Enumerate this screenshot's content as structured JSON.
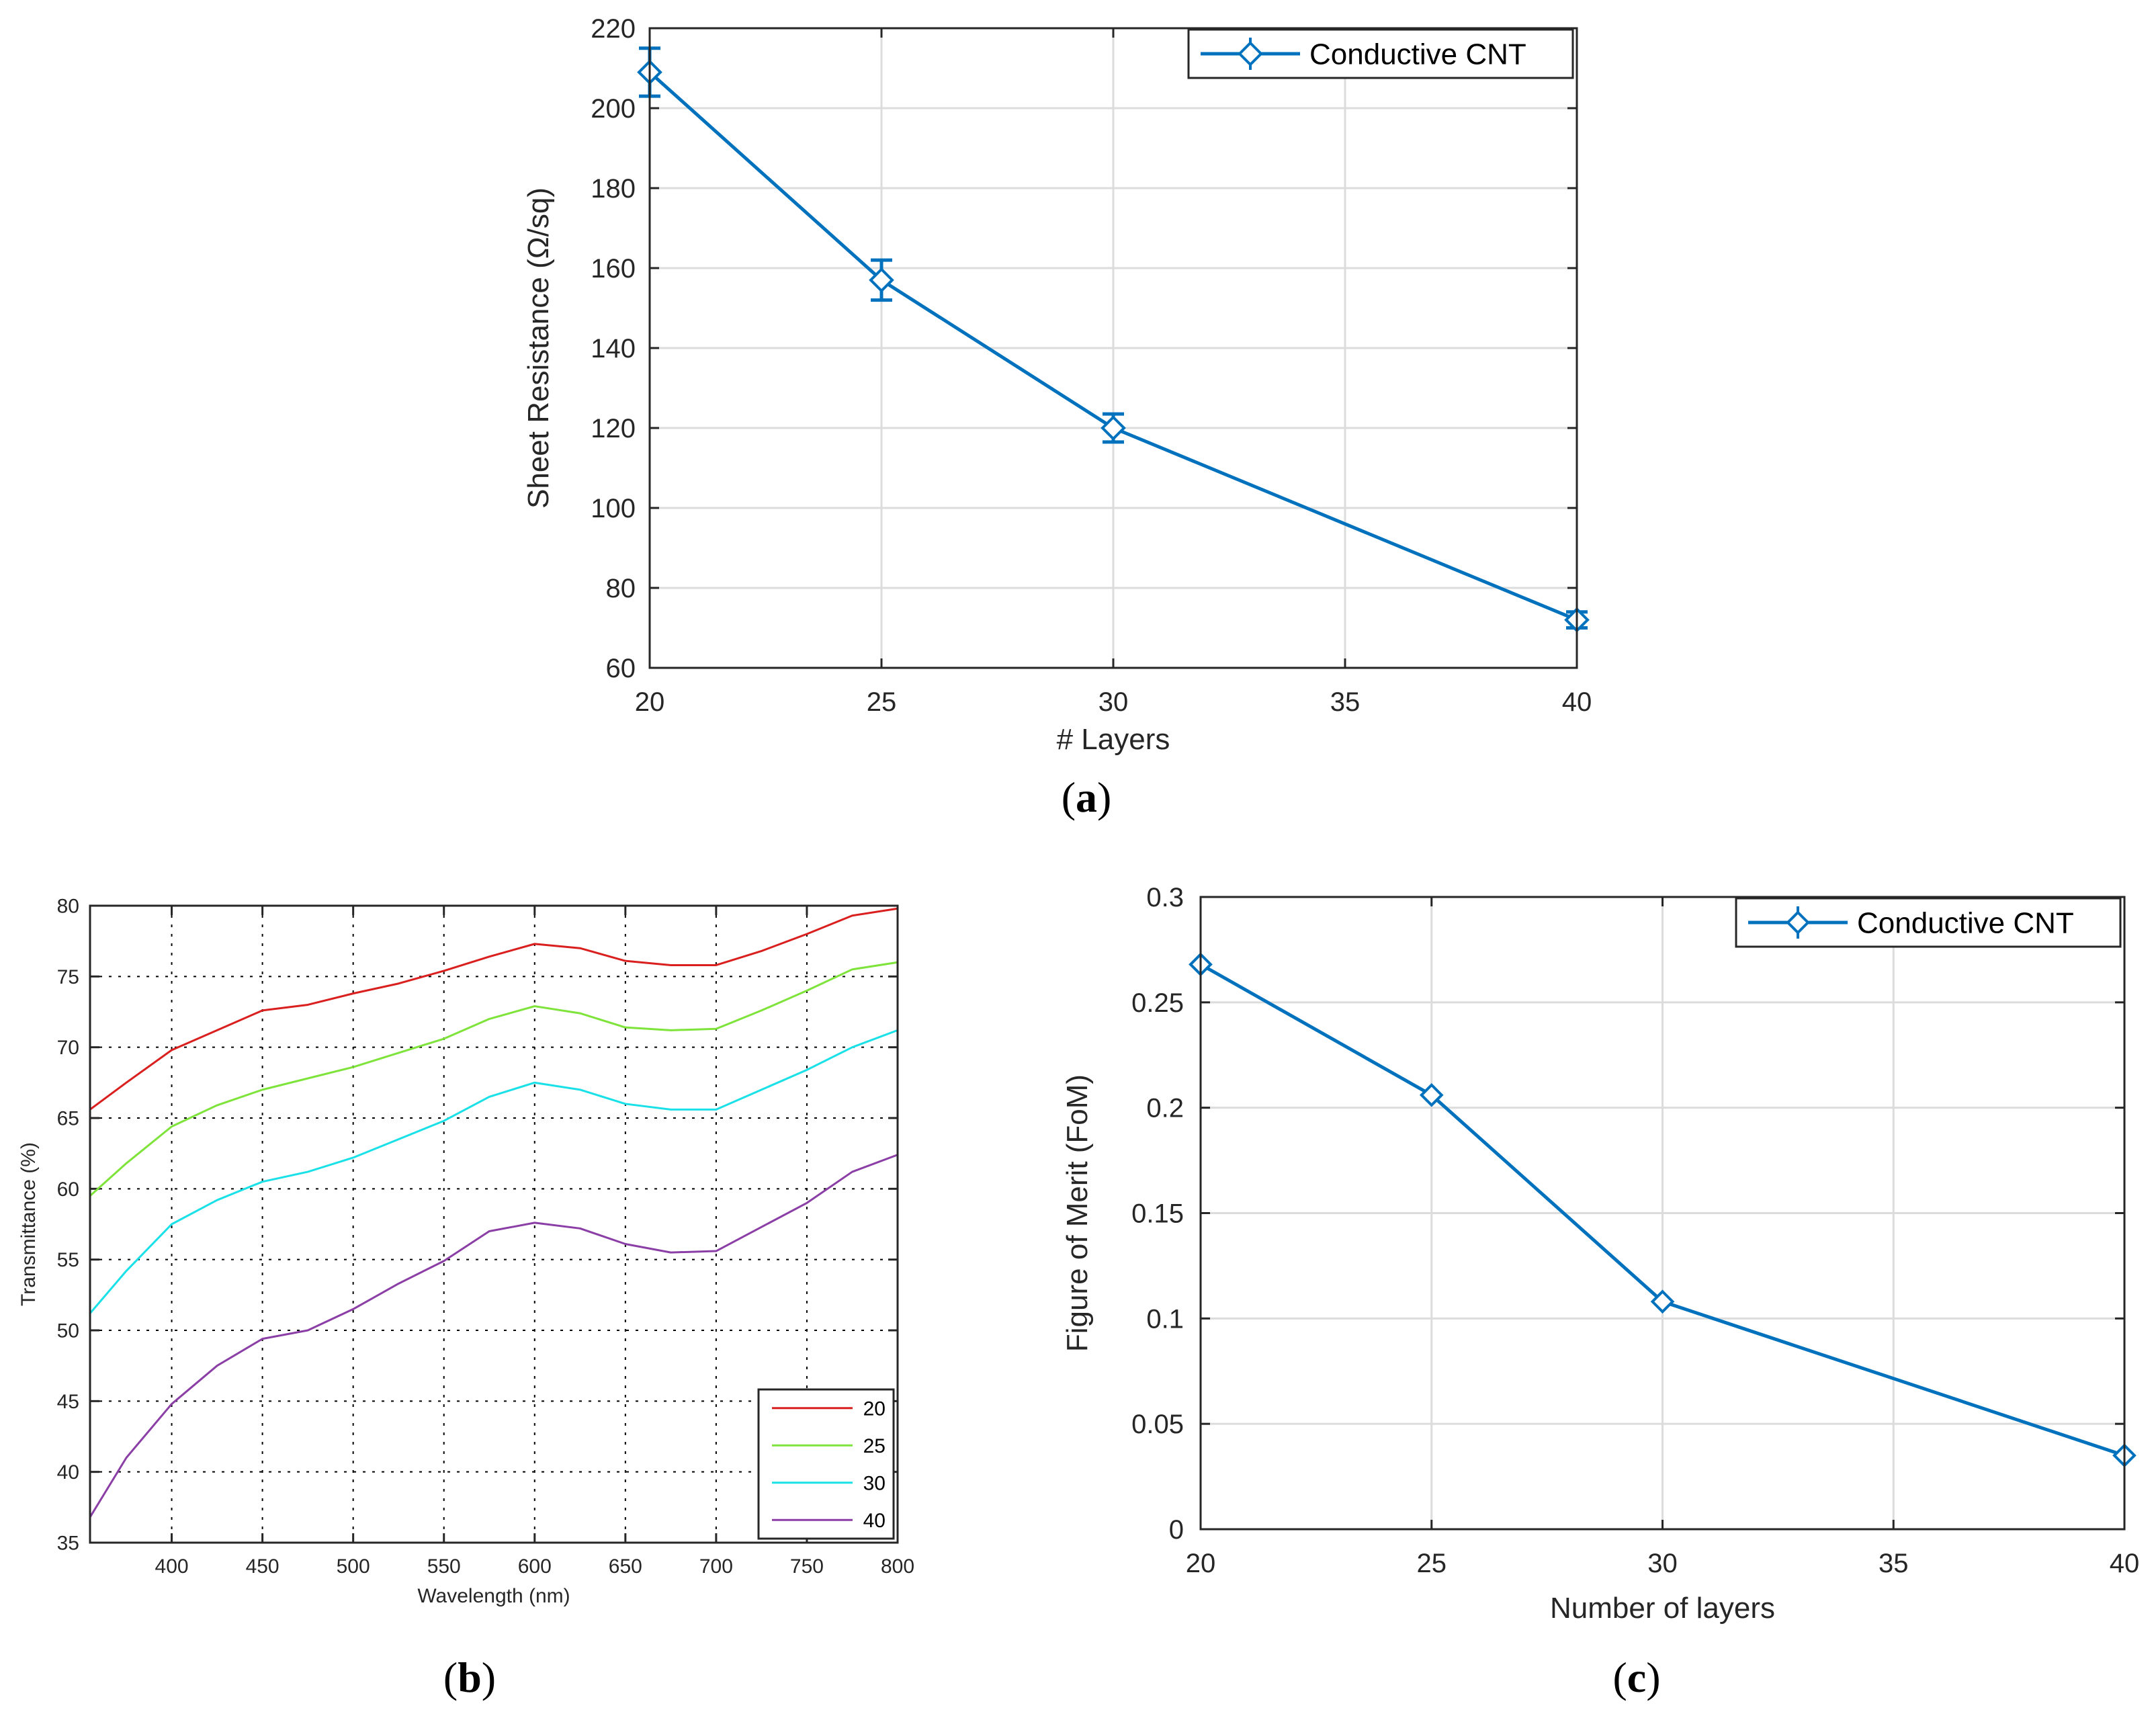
{
  "panels": {
    "a": {
      "label": "a"
    },
    "b": {
      "label": "b"
    },
    "c": {
      "label": "c"
    }
  },
  "chart_data": [
    {
      "id": "a",
      "type": "line",
      "title": "",
      "xlabel": "# Layers",
      "ylabel": "Sheet Resistance (Ω/sq)",
      "xlim": [
        20,
        40
      ],
      "ylim": [
        60,
        220
      ],
      "xticks": [
        20,
        25,
        30,
        35,
        40
      ],
      "yticks": [
        60,
        80,
        100,
        120,
        140,
        160,
        180,
        200,
        220
      ],
      "grid": "solid",
      "legend_position": "top-right",
      "series": [
        {
          "name": "Conductive CNT",
          "color": "#0072bd",
          "marker": "diamond",
          "x": [
            20,
            25,
            30,
            40
          ],
          "values": [
            209,
            157,
            120,
            72
          ],
          "error": [
            6,
            5,
            3.5,
            2
          ]
        }
      ]
    },
    {
      "id": "b",
      "type": "line",
      "title": "",
      "xlabel": "Wavelength (nm)",
      "ylabel": "Transmittance (%)",
      "xlim": [
        355,
        800
      ],
      "ylim": [
        35,
        80
      ],
      "xticks": [
        400,
        450,
        500,
        550,
        600,
        650,
        700,
        750,
        800
      ],
      "yticks": [
        35,
        40,
        45,
        50,
        55,
        60,
        65,
        70,
        75,
        80
      ],
      "grid": "dotted",
      "legend_position": "bottom-right",
      "x": [
        355,
        375,
        400,
        425,
        450,
        475,
        500,
        525,
        550,
        575,
        600,
        625,
        650,
        675,
        700,
        725,
        750,
        775,
        800
      ],
      "series": [
        {
          "name": "20",
          "color": "#d9201f",
          "values": [
            65.6,
            67.5,
            69.8,
            71.2,
            72.6,
            73.0,
            73.8,
            74.5,
            75.4,
            76.4,
            77.3,
            77.0,
            76.1,
            75.8,
            75.8,
            76.8,
            78.0,
            79.3,
            79.8
          ]
        },
        {
          "name": "25",
          "color": "#7ee33a",
          "values": [
            59.5,
            61.8,
            64.4,
            65.9,
            67.0,
            67.8,
            68.6,
            69.6,
            70.6,
            72.0,
            72.9,
            72.4,
            71.4,
            71.2,
            71.3,
            72.6,
            74.0,
            75.5,
            76.0
          ]
        },
        {
          "name": "30",
          "color": "#1ae0e8",
          "values": [
            51.2,
            54.2,
            57.5,
            59.2,
            60.5,
            61.2,
            62.2,
            63.5,
            64.8,
            66.5,
            67.5,
            67.0,
            66.0,
            65.6,
            65.6,
            67.0,
            68.4,
            70.0,
            71.2
          ]
        },
        {
          "name": "40",
          "color": "#8b3fa6",
          "values": [
            36.8,
            41.0,
            44.8,
            47.5,
            49.4,
            50.0,
            51.5,
            53.3,
            54.9,
            57.0,
            57.6,
            57.2,
            56.1,
            55.5,
            55.6,
            57.3,
            59.0,
            61.2,
            62.4
          ]
        }
      ]
    },
    {
      "id": "c",
      "type": "line",
      "title": "",
      "xlabel": "Number of layers",
      "ylabel": "Figure of Merit (FoM)",
      "xlim": [
        20,
        40
      ],
      "ylim": [
        0,
        0.3
      ],
      "xticks": [
        20,
        25,
        30,
        35,
        40
      ],
      "yticks": [
        0,
        0.05,
        0.1,
        0.15,
        0.2,
        0.25,
        0.3
      ],
      "yticklabels": [
        "0",
        "0.05",
        "0.1",
        "0.15",
        "0.2",
        "0.25",
        "0.3"
      ],
      "grid": "solid",
      "legend_position": "top-right",
      "series": [
        {
          "name": "Conductive CNT",
          "color": "#0072bd",
          "marker": "diamond",
          "x": [
            20,
            25,
            30,
            40
          ],
          "values": [
            0.268,
            0.206,
            0.108,
            0.035
          ]
        }
      ]
    }
  ]
}
